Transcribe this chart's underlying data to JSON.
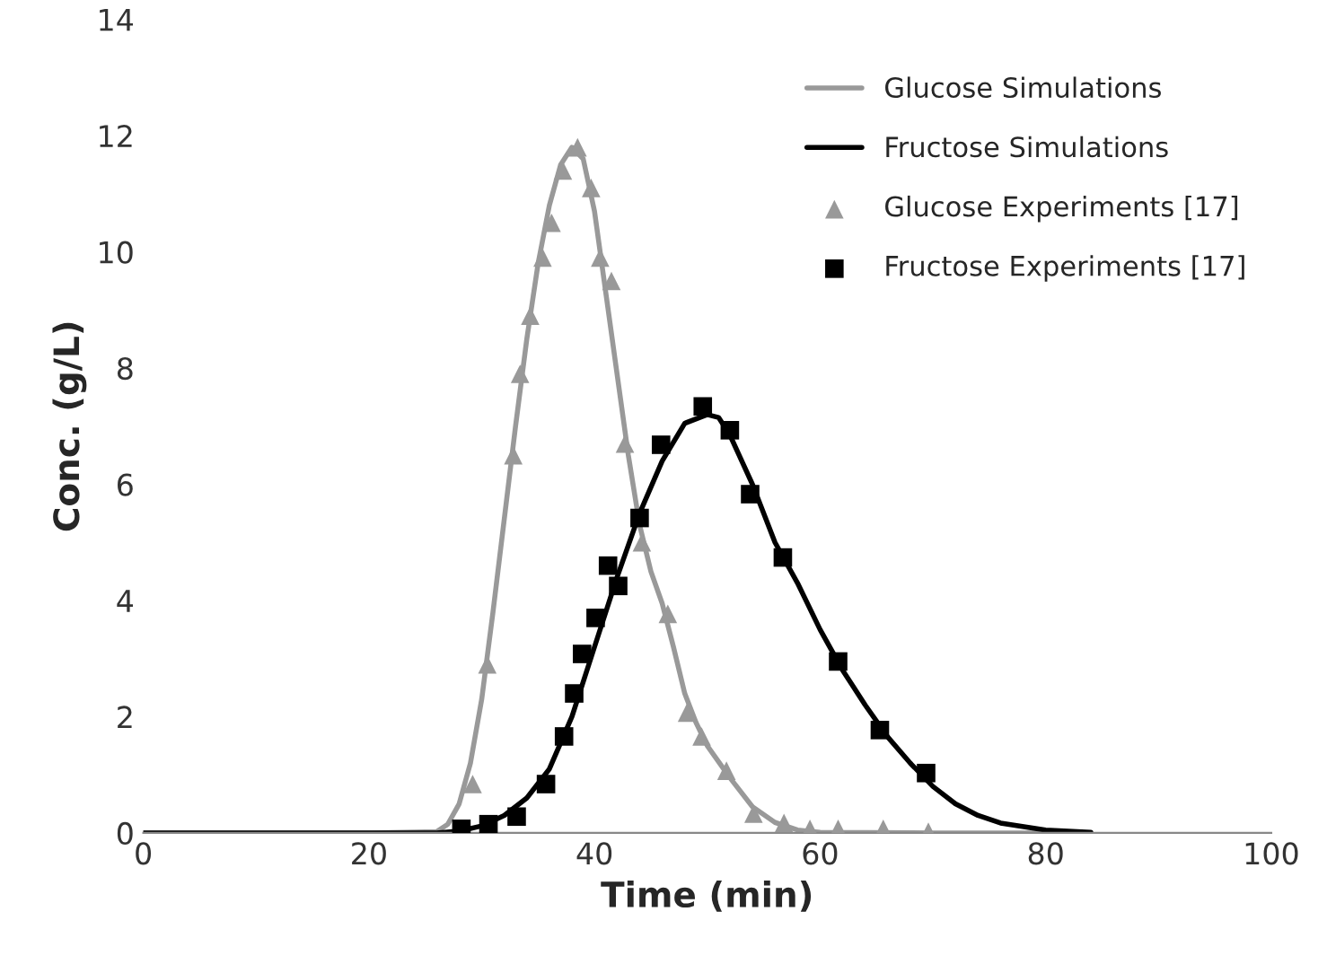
{
  "chart_data": {
    "type": "line",
    "xlabel": "Time (min)",
    "ylabel": "Conc. (g/L)",
    "xlim": [
      0,
      100
    ],
    "xticks": [
      0,
      20,
      40,
      60,
      80,
      100
    ],
    "ylim": [
      0,
      14
    ],
    "yticks": [
      0,
      2,
      4,
      6,
      8,
      10,
      12,
      14
    ],
    "grid": false,
    "legend": "top right",
    "series": [
      {
        "name": "Glucose Simulations",
        "color": "#999999",
        "marker": "none",
        "x": [
          0,
          20,
          26,
          27,
          28,
          29,
          30,
          31,
          32,
          33,
          34,
          35,
          36,
          37,
          38,
          39,
          40,
          41,
          42,
          43,
          44,
          45,
          46,
          47,
          48,
          49,
          50,
          52,
          54,
          56,
          58,
          60,
          70,
          84
        ],
        "values": [
          0,
          0,
          0.02,
          0.15,
          0.5,
          1.2,
          2.3,
          3.8,
          5.4,
          7.0,
          8.5,
          9.8,
          10.8,
          11.5,
          11.8,
          11.6,
          10.7,
          9.3,
          7.9,
          6.5,
          5.3,
          4.5,
          3.95,
          3.2,
          2.4,
          1.9,
          1.5,
          0.95,
          0.45,
          0.18,
          0.05,
          0.01,
          0,
          0
        ]
      },
      {
        "name": "Fructose Simulations",
        "color": "#000000",
        "marker": "none",
        "x": [
          0,
          26,
          28,
          30,
          32,
          34,
          36,
          38,
          40,
          42,
          44,
          46,
          48,
          50,
          51,
          52,
          54,
          56,
          58,
          60,
          62,
          64,
          66,
          68,
          70,
          72,
          74,
          76,
          80,
          84
        ],
        "values": [
          0,
          0,
          0.03,
          0.12,
          0.3,
          0.6,
          1.1,
          2.0,
          3.2,
          4.4,
          5.5,
          6.4,
          7.05,
          7.2,
          7.15,
          6.85,
          6.0,
          5.0,
          4.3,
          3.5,
          2.8,
          2.2,
          1.65,
          1.2,
          0.8,
          0.5,
          0.3,
          0.17,
          0.05,
          0.01
        ]
      },
      {
        "name": "Glucose Experiments [17]",
        "type": "scatter",
        "color": "#999999",
        "marker": "triangle",
        "x": [
          29.2,
          30.5,
          32.8,
          33.4,
          34.3,
          35.4,
          36.2,
          37.2,
          38.5,
          39.7,
          40.5,
          41.5,
          42.7,
          44.2,
          46.5,
          48.2,
          49.5,
          51.7,
          54.1,
          56.8,
          59.1,
          61.6,
          65.6,
          69.6
        ],
        "values": [
          0.84,
          2.9,
          6.5,
          7.9,
          8.9,
          9.9,
          10.5,
          11.4,
          11.8,
          11.1,
          9.9,
          9.5,
          6.7,
          5.0,
          3.77,
          2.07,
          1.66,
          1.07,
          0.33,
          0.17,
          0.07,
          0.07,
          0.07,
          0.02
        ]
      },
      {
        "name": "Fructose Experiments [17]",
        "type": "scatter",
        "color": "#000000",
        "marker": "square",
        "x": [
          28.2,
          30.6,
          33.1,
          35.7,
          37.3,
          38.2,
          38.9,
          40.1,
          41.2,
          42.1,
          44.0,
          45.9,
          49.6,
          52.0,
          53.8,
          56.7,
          61.6,
          65.3,
          69.4
        ],
        "values": [
          0.07,
          0.15,
          0.28,
          0.84,
          1.66,
          2.4,
          3.08,
          3.7,
          4.6,
          4.25,
          5.42,
          6.68,
          7.34,
          6.93,
          5.83,
          4.74,
          2.95,
          1.77,
          1.03
        ]
      }
    ]
  }
}
